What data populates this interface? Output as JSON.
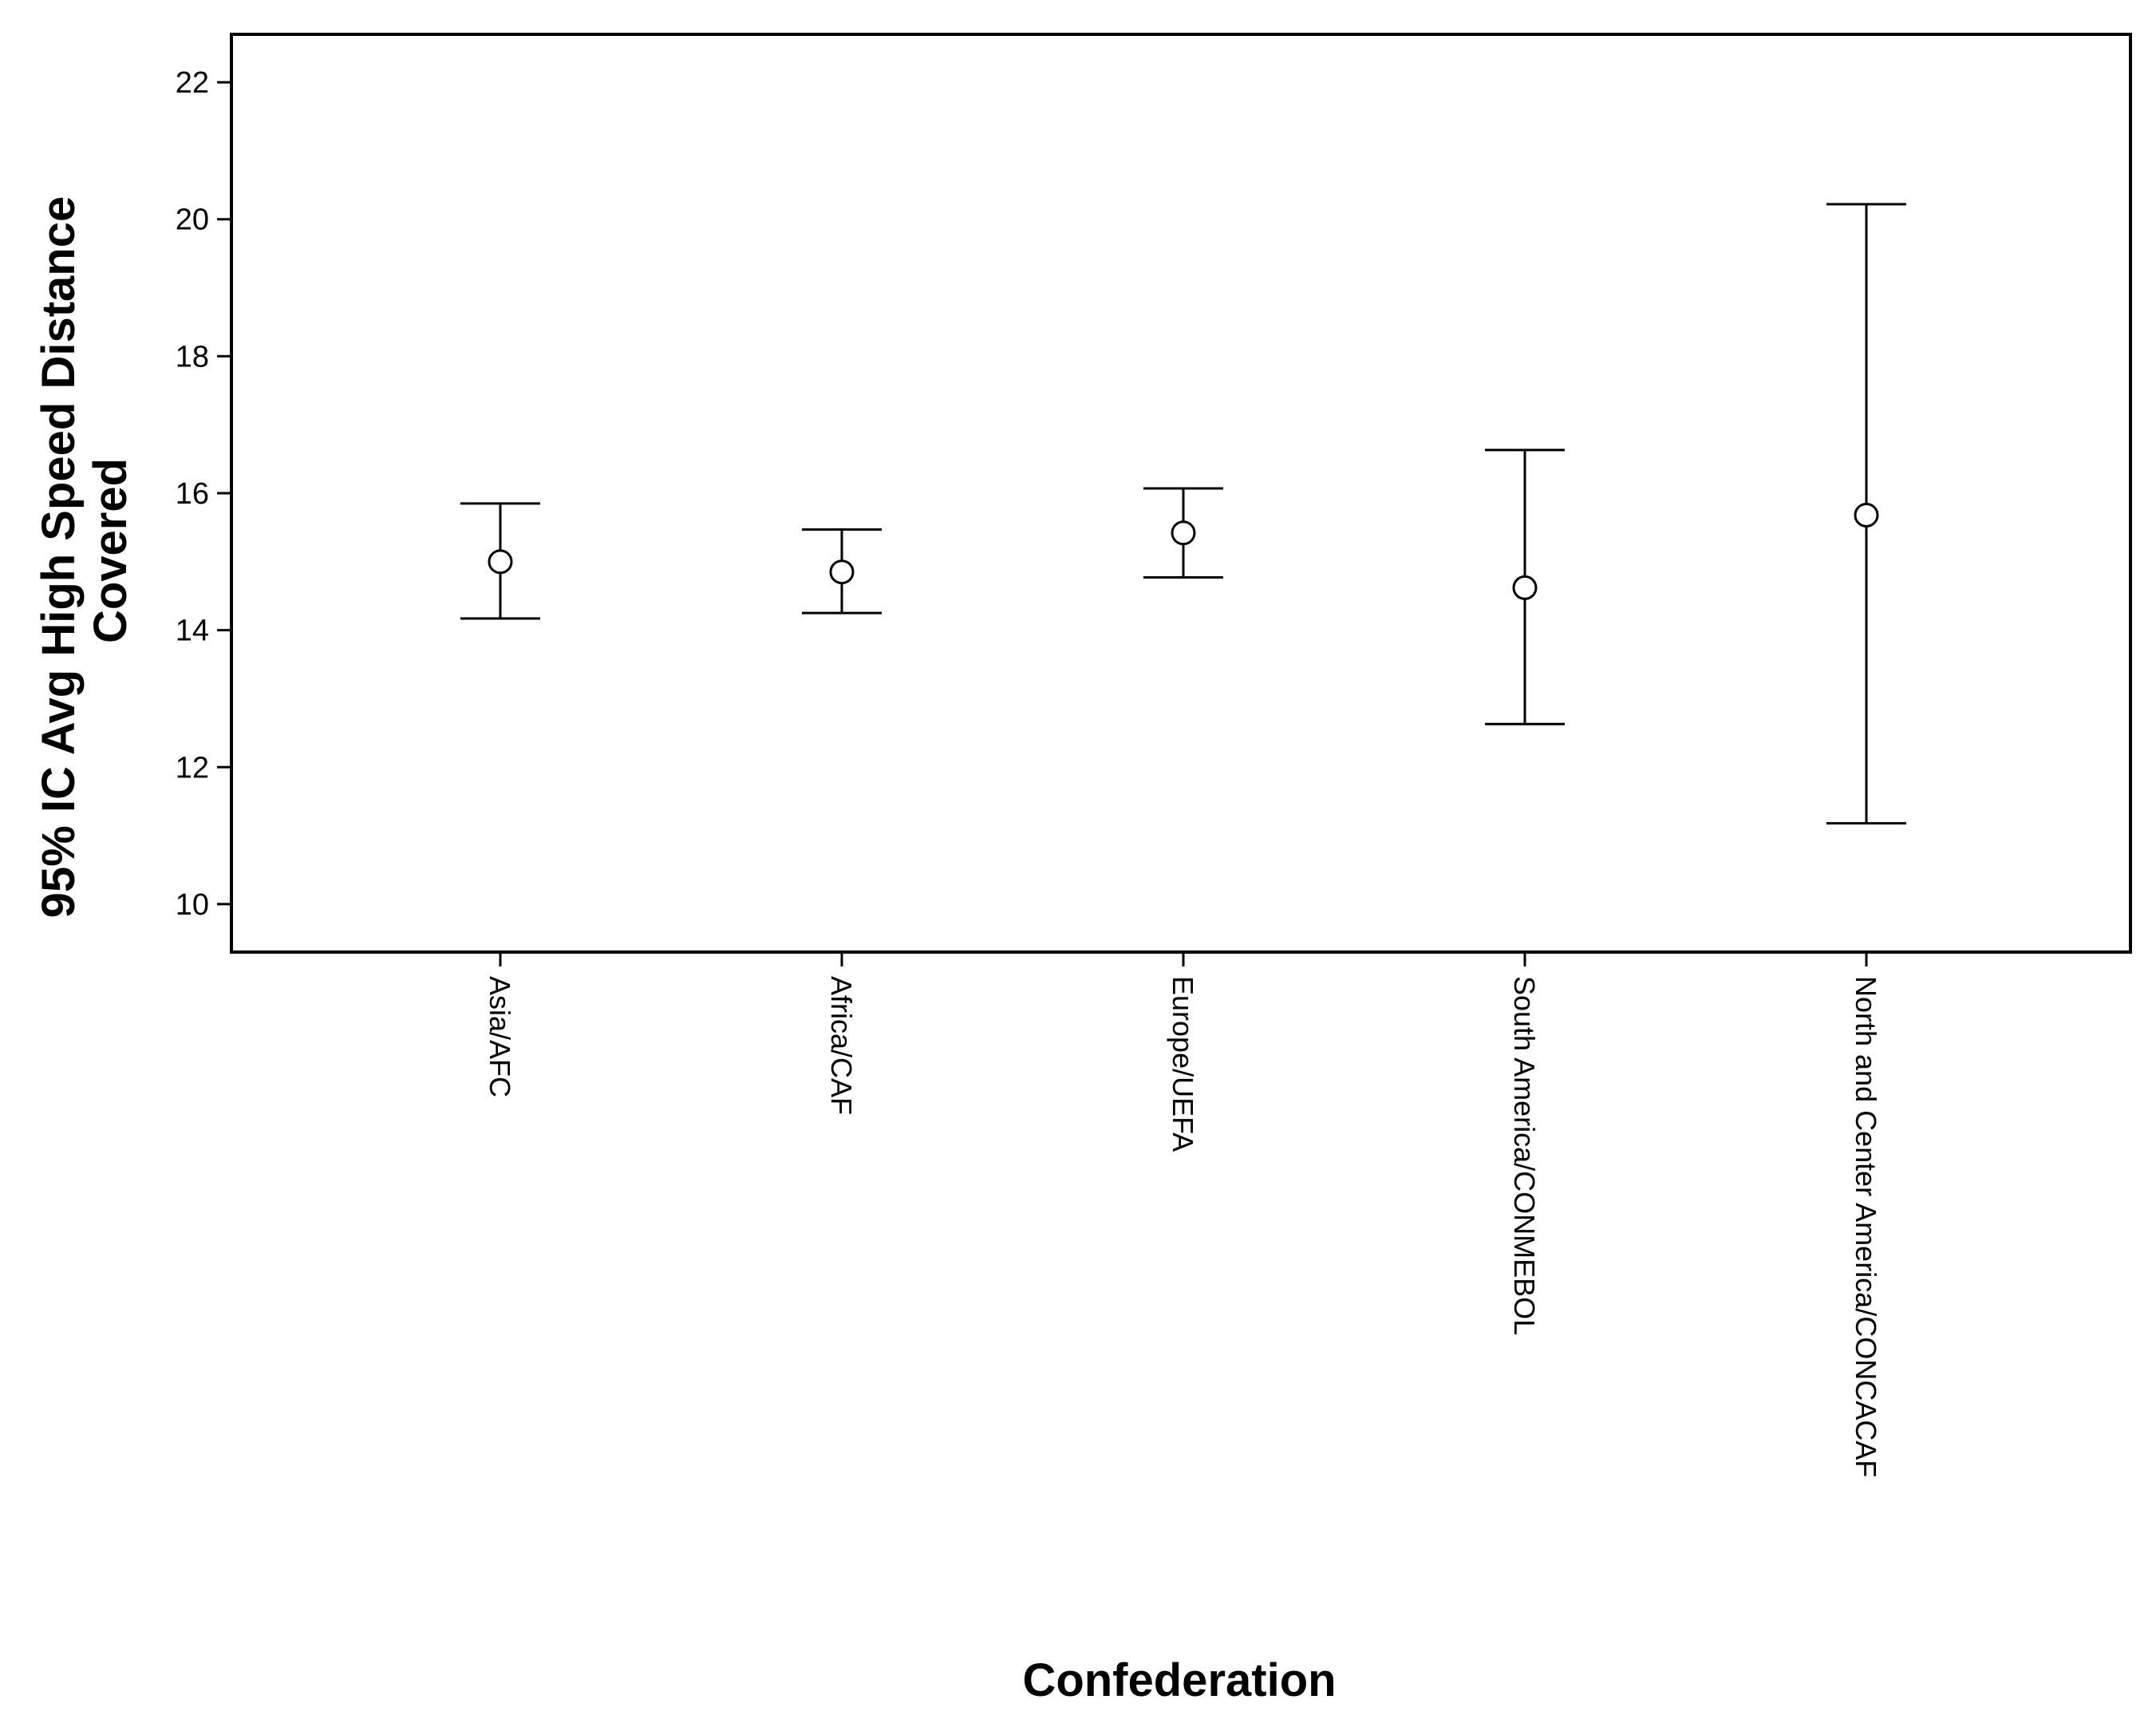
{
  "chart_data": {
    "type": "errorbar",
    "xlabel": "Confederation",
    "ylabel_lines": [
      "95% IC Avg High Speed Distance",
      "Covered"
    ],
    "ylim": [
      9.3,
      22.7
    ],
    "yticks": [
      10,
      12,
      14,
      16,
      18,
      20,
      22
    ],
    "grid": false,
    "categories": [
      "Asia/AFC",
      "Africa/CAF",
      "Europe/UEFA",
      "South America/CONMEBOL",
      "North and Center America/CONCACAF"
    ],
    "means": [
      15.0,
      14.85,
      15.42,
      14.62,
      15.68
    ],
    "lower": [
      14.17,
      14.25,
      14.77,
      12.63,
      11.18
    ],
    "upper": [
      15.85,
      15.47,
      16.07,
      16.63,
      20.22
    ]
  }
}
